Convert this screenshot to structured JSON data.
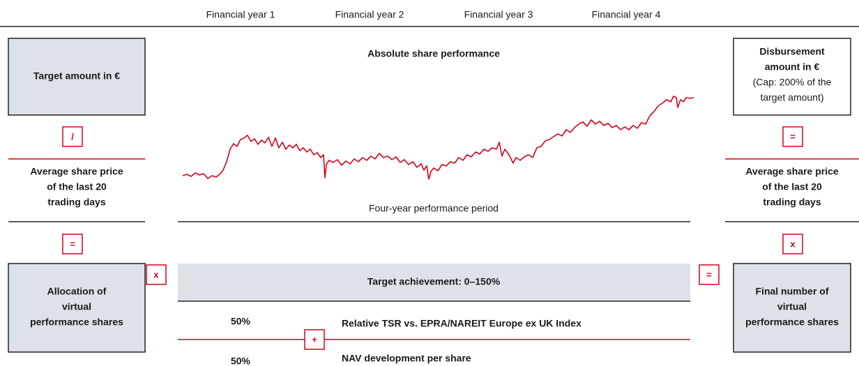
{
  "header": {
    "years": [
      "Financial year 1",
      "Financial year 2",
      "Financial year 3",
      "Financial year 4"
    ]
  },
  "left": {
    "target_amount": "Target amount in €",
    "op_divide": "/",
    "average_price": [
      "Average share price",
      "of the last 20",
      "trading days"
    ],
    "op_equals": "=",
    "allocation": [
      "Allocation of",
      "virtual",
      "performance shares"
    ],
    "op_times": "x"
  },
  "center": {
    "title": "Absolute share performance",
    "period": "Four-year performance period",
    "target_achievement": "Target achievement: 0–150%",
    "components": [
      {
        "weight": "50%",
        "label": "Relative TSR vs. EPRA/NAREIT Europe ex UK Index"
      },
      {
        "weight": "50%",
        "label": "NAV development per share"
      }
    ],
    "op_plus": "+",
    "op_equals": "="
  },
  "right": {
    "disbursement": [
      "Disbursement",
      "amount in €"
    ],
    "cap": [
      "(Cap: 200% of the",
      "target amount)"
    ],
    "op_equals": "=",
    "average_price": [
      "Average share price",
      "of the last 20",
      "trading days"
    ],
    "op_times": "x",
    "final_number": [
      "Final number of",
      "virtual",
      "performance shares"
    ]
  }
}
